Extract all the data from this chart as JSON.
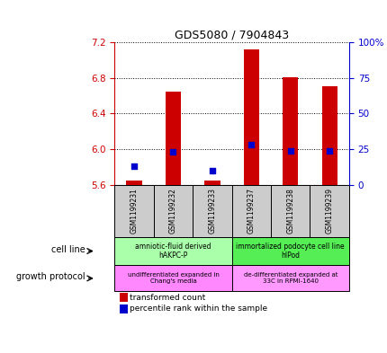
{
  "title": "GDS5080 / 7904843",
  "samples": [
    "GSM1199231",
    "GSM1199232",
    "GSM1199233",
    "GSM1199237",
    "GSM1199238",
    "GSM1199239"
  ],
  "transformed_counts": [
    5.65,
    6.65,
    5.65,
    7.12,
    6.81,
    6.71
  ],
  "percentile_ranks": [
    13,
    23,
    10,
    28,
    24,
    24
  ],
  "ylim_left": [
    5.6,
    7.2
  ],
  "ylim_right": [
    0,
    100
  ],
  "yticks_left": [
    5.6,
    6.0,
    6.4,
    6.8,
    7.2
  ],
  "yticks_right": [
    0,
    25,
    50,
    75,
    100
  ],
  "bar_bottom": 5.6,
  "bar_color": "#cc0000",
  "dot_color": "#0000cc",
  "bar_width": 0.4,
  "dot_size": 25,
  "cell_line_groups": [
    {
      "label": "amniotic-fluid derived\nhAKPC-P",
      "start": 0,
      "end": 3,
      "color": "#aaffaa"
    },
    {
      "label": "immortalized podocyte cell line\nhIPod",
      "start": 3,
      "end": 6,
      "color": "#55ee55"
    }
  ],
  "growth_protocol_groups": [
    {
      "label": "undifferentiated expanded in\nChang's media",
      "start": 0,
      "end": 3,
      "color": "#ff88ff"
    },
    {
      "label": "de-differentiated expanded at\n33C in RPMI-1640",
      "start": 3,
      "end": 6,
      "color": "#ff99ff"
    }
  ],
  "legend_labels": [
    "transformed count",
    "percentile rank within the sample"
  ],
  "legend_colors": [
    "#cc0000",
    "#0000cc"
  ],
  "cell_line_label": "cell line",
  "growth_protocol_label": "growth protocol",
  "bg_color": "#ffffff",
  "tick_color_left": "#cc0000",
  "tick_color_right": "#0000cc",
  "sample_box_color": "#cccccc",
  "title_fontsize": 9
}
